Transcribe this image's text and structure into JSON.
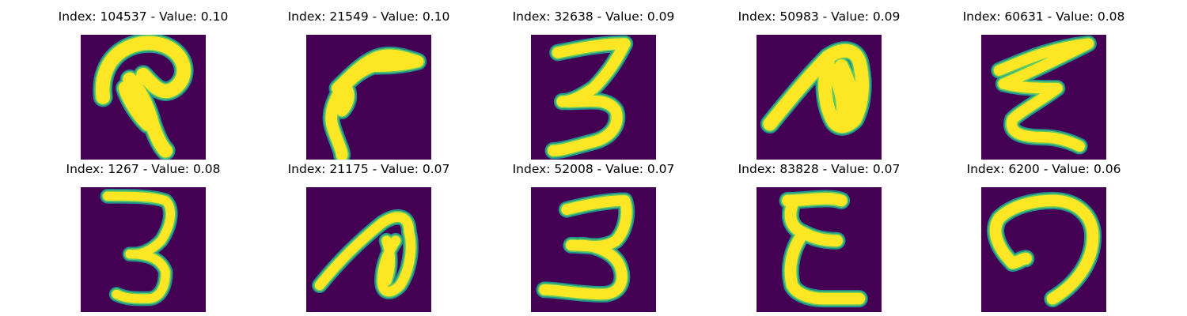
{
  "figure": {
    "title": ""
  },
  "colors": {
    "background": "#440154",
    "stroke_core": "#fde725",
    "stroke_mid": "#5ec962",
    "stroke_edge": "#21918c"
  },
  "chart_data": {
    "type": "image-grid",
    "title": "",
    "rows": 2,
    "cols": 5,
    "panels": [
      {
        "index": 104537,
        "value": 0.1,
        "title": "Index: 104537 - Value: 0.10",
        "glyph": "curl-p"
      },
      {
        "index": 21549,
        "value": 0.1,
        "title": "Index: 21549 - Value: 0.10",
        "glyph": "hook-7"
      },
      {
        "index": 32638,
        "value": 0.09,
        "title": "Index: 32638 - Value: 0.09",
        "glyph": "three"
      },
      {
        "index": 50983,
        "value": 0.09,
        "title": "Index: 50983 - Value: 0.09",
        "glyph": "loop-n"
      },
      {
        "index": 60631,
        "value": 0.08,
        "title": "Index: 60631 - Value: 0.08",
        "glyph": "zigzag-e"
      },
      {
        "index": 1267,
        "value": 0.08,
        "title": "Index: 1267 - Value: 0.08",
        "glyph": "three-thin"
      },
      {
        "index": 21175,
        "value": 0.07,
        "title": "Index: 21175 - Value: 0.07",
        "glyph": "loop-n-thin"
      },
      {
        "index": 52008,
        "value": 0.07,
        "title": "Index: 52008 - Value: 0.07",
        "glyph": "three-wide"
      },
      {
        "index": 83828,
        "value": 0.07,
        "title": "Index: 83828 - Value: 0.07",
        "glyph": "e-shape"
      },
      {
        "index": 6200,
        "value": 0.06,
        "title": "Index: 6200 - Value: 0.06",
        "glyph": "arch"
      }
    ]
  }
}
